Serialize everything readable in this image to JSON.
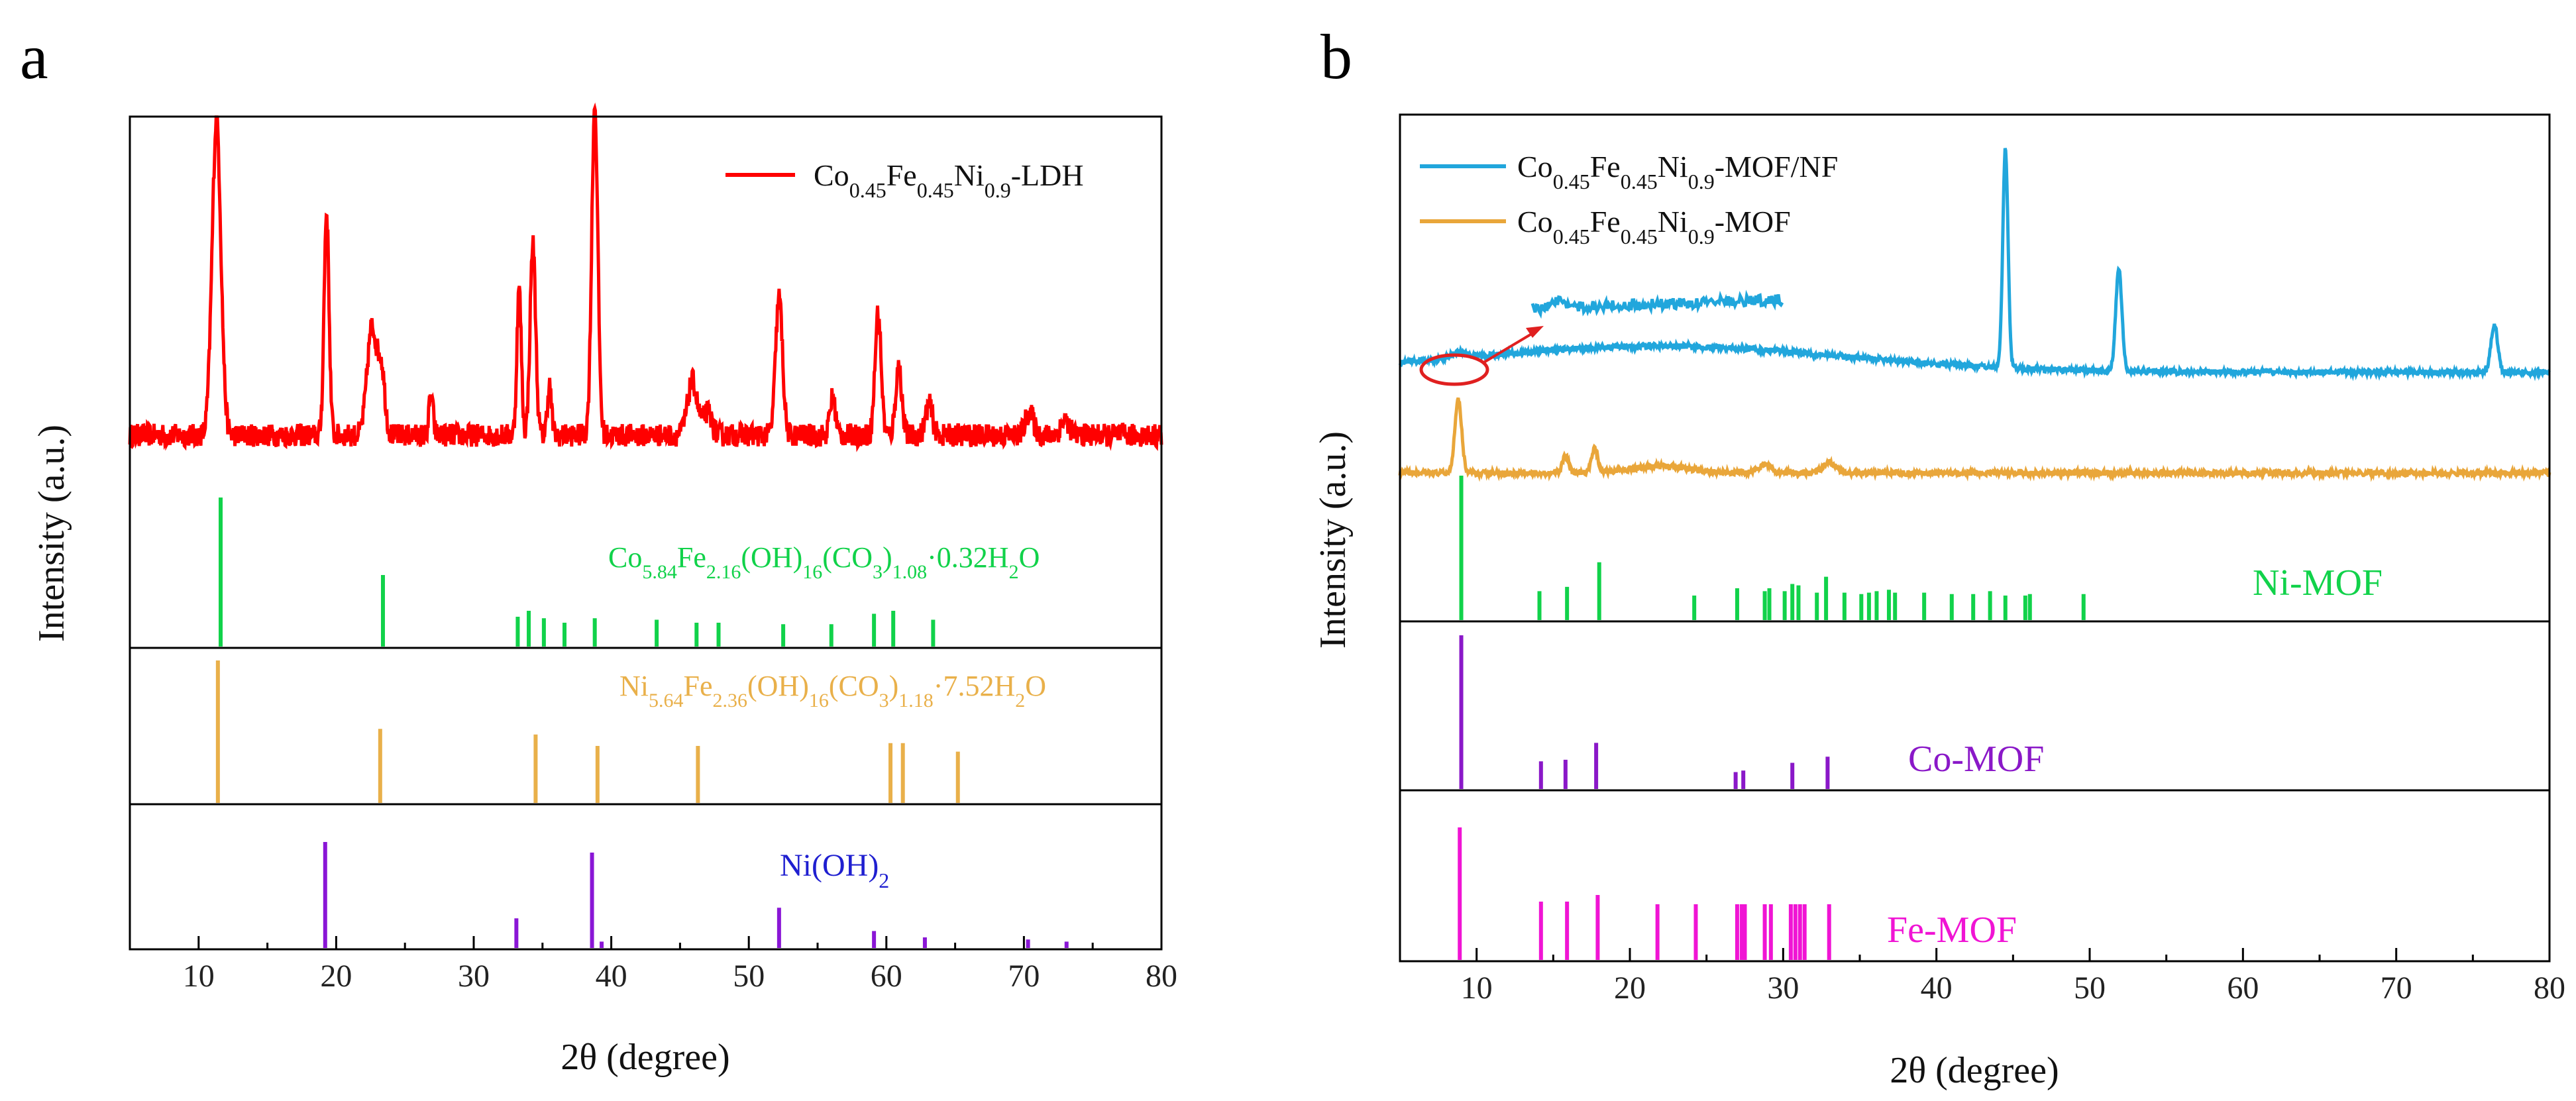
{
  "figure": {
    "panel_a_letter": "a",
    "panel_b_letter": "b"
  },
  "colors": {
    "ldh": "#ff0000",
    "nf": "#21a6dc",
    "mof": "#e9a63a",
    "green": "#11d24a",
    "orange_ref": "#e9b04a",
    "purple": "#8a16d6",
    "co_mof": "#8a18c8",
    "fe_mof": "#f014d4",
    "nioh_text": "#1f1fd0"
  },
  "chart_data": [
    {
      "type": "line",
      "panel": "a",
      "xlabel": "2θ (degree)",
      "ylabel": "Intensity (a.u.)",
      "xlim": [
        5,
        80
      ],
      "xticks": [
        10,
        20,
        30,
        40,
        50,
        60,
        70,
        80
      ],
      "xtick_labels": [
        "10",
        "20",
        "30",
        "40",
        "50",
        "60",
        "70",
        "80"
      ],
      "grid": false,
      "legend_position": "top-right",
      "series": [
        {
          "name": "Co0.45Fe0.45Ni0.9-LDH",
          "legend_parts": [
            "Co",
            "0.45",
            "Fe",
            "0.45",
            "Ni",
            "0.9",
            "-LDH"
          ],
          "baseline": 0.1,
          "noise": 0.03,
          "peaks": [
            [
              11.3,
              0.82,
              0.32
            ],
            [
              19.3,
              0.58,
              0.18
            ],
            [
              22.6,
              0.28,
              0.35
            ],
            [
              23.3,
              0.16,
              0.25
            ],
            [
              26.9,
              0.1,
              0.15
            ],
            [
              33.3,
              0.38,
              0.16
            ],
            [
              34.3,
              0.5,
              0.2
            ],
            [
              35.5,
              0.13,
              0.15
            ],
            [
              38.8,
              0.86,
              0.22
            ],
            [
              45.9,
              0.14,
              0.35
            ],
            [
              47.0,
              0.06,
              0.3
            ],
            [
              52.2,
              0.36,
              0.25
            ],
            [
              56.1,
              0.1,
              0.2
            ],
            [
              59.4,
              0.32,
              0.22
            ],
            [
              60.9,
              0.18,
              0.22
            ],
            [
              63.1,
              0.08,
              0.25
            ],
            [
              70.4,
              0.06,
              0.3
            ],
            [
              73.0,
              0.04,
              0.3
            ]
          ]
        }
      ],
      "reference_patterns": [
        {
          "name": "Co5.84Fe2.16(OH)16(CO3)1.08·0.32H2O",
          "label_parts": [
            "Co",
            "5.84",
            "Fe",
            "2.16",
            "(OH)",
            "16",
            "(CO",
            "3",
            ")",
            "1.08",
            "·0.32H",
            "2",
            "O"
          ],
          "positions": [
            11.6,
            23.4,
            33.2,
            34.0,
            35.1,
            36.6,
            38.8,
            43.3,
            46.2,
            47.8,
            52.5,
            56.0,
            59.1,
            60.5,
            63.4
          ],
          "intensities": [
            1.0,
            0.48,
            0.2,
            0.24,
            0.19,
            0.16,
            0.19,
            0.18,
            0.16,
            0.16,
            0.15,
            0.15,
            0.22,
            0.24,
            0.18
          ]
        },
        {
          "name": "Ni5.64Fe2.36(OH)16(CO3)1.18·7.52H2O",
          "label_parts": [
            "Ni",
            "5.64",
            "Fe",
            "2.36",
            "(OH)",
            "16",
            "(CO",
            "3",
            ")",
            "1.18",
            "·7.52H",
            "2",
            "O"
          ],
          "positions": [
            11.4,
            23.2,
            34.5,
            39.0,
            46.3,
            60.3,
            61.2,
            65.2
          ],
          "intensities": [
            1.0,
            0.52,
            0.48,
            0.4,
            0.4,
            0.42,
            0.42,
            0.36
          ]
        },
        {
          "name": "Ni(OH)2",
          "label_parts": [
            "Ni(OH)",
            "2"
          ],
          "positions": [
            19.2,
            33.1,
            38.6,
            39.3,
            52.2,
            59.1,
            62.8,
            70.3,
            73.1
          ],
          "intensities": [
            1.0,
            0.28,
            0.9,
            0.06,
            0.38,
            0.16,
            0.1,
            0.08,
            0.06
          ]
        }
      ]
    },
    {
      "type": "line",
      "panel": "b",
      "xlabel": "2θ (degree)",
      "ylabel": "Intensity (a.u.)",
      "xlim": [
        5,
        80
      ],
      "xticks": [
        10,
        20,
        30,
        40,
        50,
        60,
        70,
        80
      ],
      "xtick_labels": [
        "10",
        "20",
        "30",
        "40",
        "50",
        "60",
        "70",
        "80"
      ],
      "grid": false,
      "legend_position": "top-left",
      "series": [
        {
          "name": "Co0.45Fe0.45Ni0.9-MOF/NF",
          "legend_parts": [
            "Co",
            "0.45",
            "Fe",
            "0.45",
            "Ni",
            "0.9",
            "-MOF/NF"
          ],
          "baseline": 0.0,
          "hump": [
            22,
            0.12,
            12
          ],
          "noise": 0.012,
          "peaks": [
            [
              44.5,
              1.0,
              0.17
            ],
            [
              51.9,
              0.47,
              0.2
            ],
            [
              76.4,
              0.22,
              0.22
            ],
            [
              8.9,
              0.03,
              0.5
            ]
          ]
        },
        {
          "name": "Co0.45Fe0.45Ni0.9-MOF",
          "legend_parts": [
            "Co",
            "0.45",
            "Fe",
            "0.45",
            "Ni",
            "0.9",
            "-MOF"
          ],
          "baseline": 0.0,
          "noise": 0.012,
          "peaks": [
            [
              8.8,
              0.34,
              0.22
            ],
            [
              15.8,
              0.08,
              0.2
            ],
            [
              17.7,
              0.11,
              0.2
            ],
            [
              28.8,
              0.04,
              0.4
            ],
            [
              33.0,
              0.05,
              0.4
            ],
            [
              22.0,
              0.03,
              2.0
            ]
          ]
        }
      ],
      "reference_patterns": [
        {
          "name": "Ni-MOF",
          "label_parts": [
            "Ni-MOF"
          ],
          "positions": [
            9.0,
            14.1,
            15.9,
            18.0,
            24.2,
            27.0,
            28.8,
            29.1,
            30.1,
            30.6,
            31.0,
            32.2,
            32.8,
            34.0,
            35.1,
            35.6,
            36.1,
            36.9,
            37.3,
            39.2,
            41.0,
            42.4,
            43.5,
            44.5,
            45.8,
            46.1,
            49.6
          ],
          "intensities": [
            1.0,
            0.2,
            0.23,
            0.4,
            0.17,
            0.22,
            0.2,
            0.22,
            0.2,
            0.25,
            0.24,
            0.19,
            0.3,
            0.19,
            0.18,
            0.19,
            0.2,
            0.21,
            0.19,
            0.19,
            0.18,
            0.18,
            0.2,
            0.17,
            0.17,
            0.18,
            0.18
          ]
        },
        {
          "name": "Co-MOF",
          "label_parts": [
            "Co-MOF"
          ],
          "positions": [
            9.0,
            14.2,
            15.8,
            17.8,
            26.9,
            27.4,
            30.6,
            32.9
          ],
          "intensities": [
            1.0,
            0.18,
            0.19,
            0.3,
            0.11,
            0.12,
            0.17,
            0.21
          ]
        },
        {
          "name": "Fe-MOF",
          "label_parts": [
            "Fe-MOF"
          ],
          "positions": [
            8.9,
            14.2,
            15.9,
            17.9,
            21.8,
            24.3,
            27.0,
            27.3,
            27.5,
            28.8,
            29.2,
            30.5,
            30.8,
            31.1,
            31.4,
            33.0
          ],
          "intensities": [
            1.0,
            0.44,
            0.44,
            0.49,
            0.42,
            0.42,
            0.42,
            0.42,
            0.42,
            0.42,
            0.42,
            0.42,
            0.42,
            0.42,
            0.42,
            0.42
          ]
        }
      ],
      "annotations": [
        {
          "type": "zoom-inset",
          "target_x": 8.9,
          "description": "magnified region"
        }
      ]
    }
  ]
}
